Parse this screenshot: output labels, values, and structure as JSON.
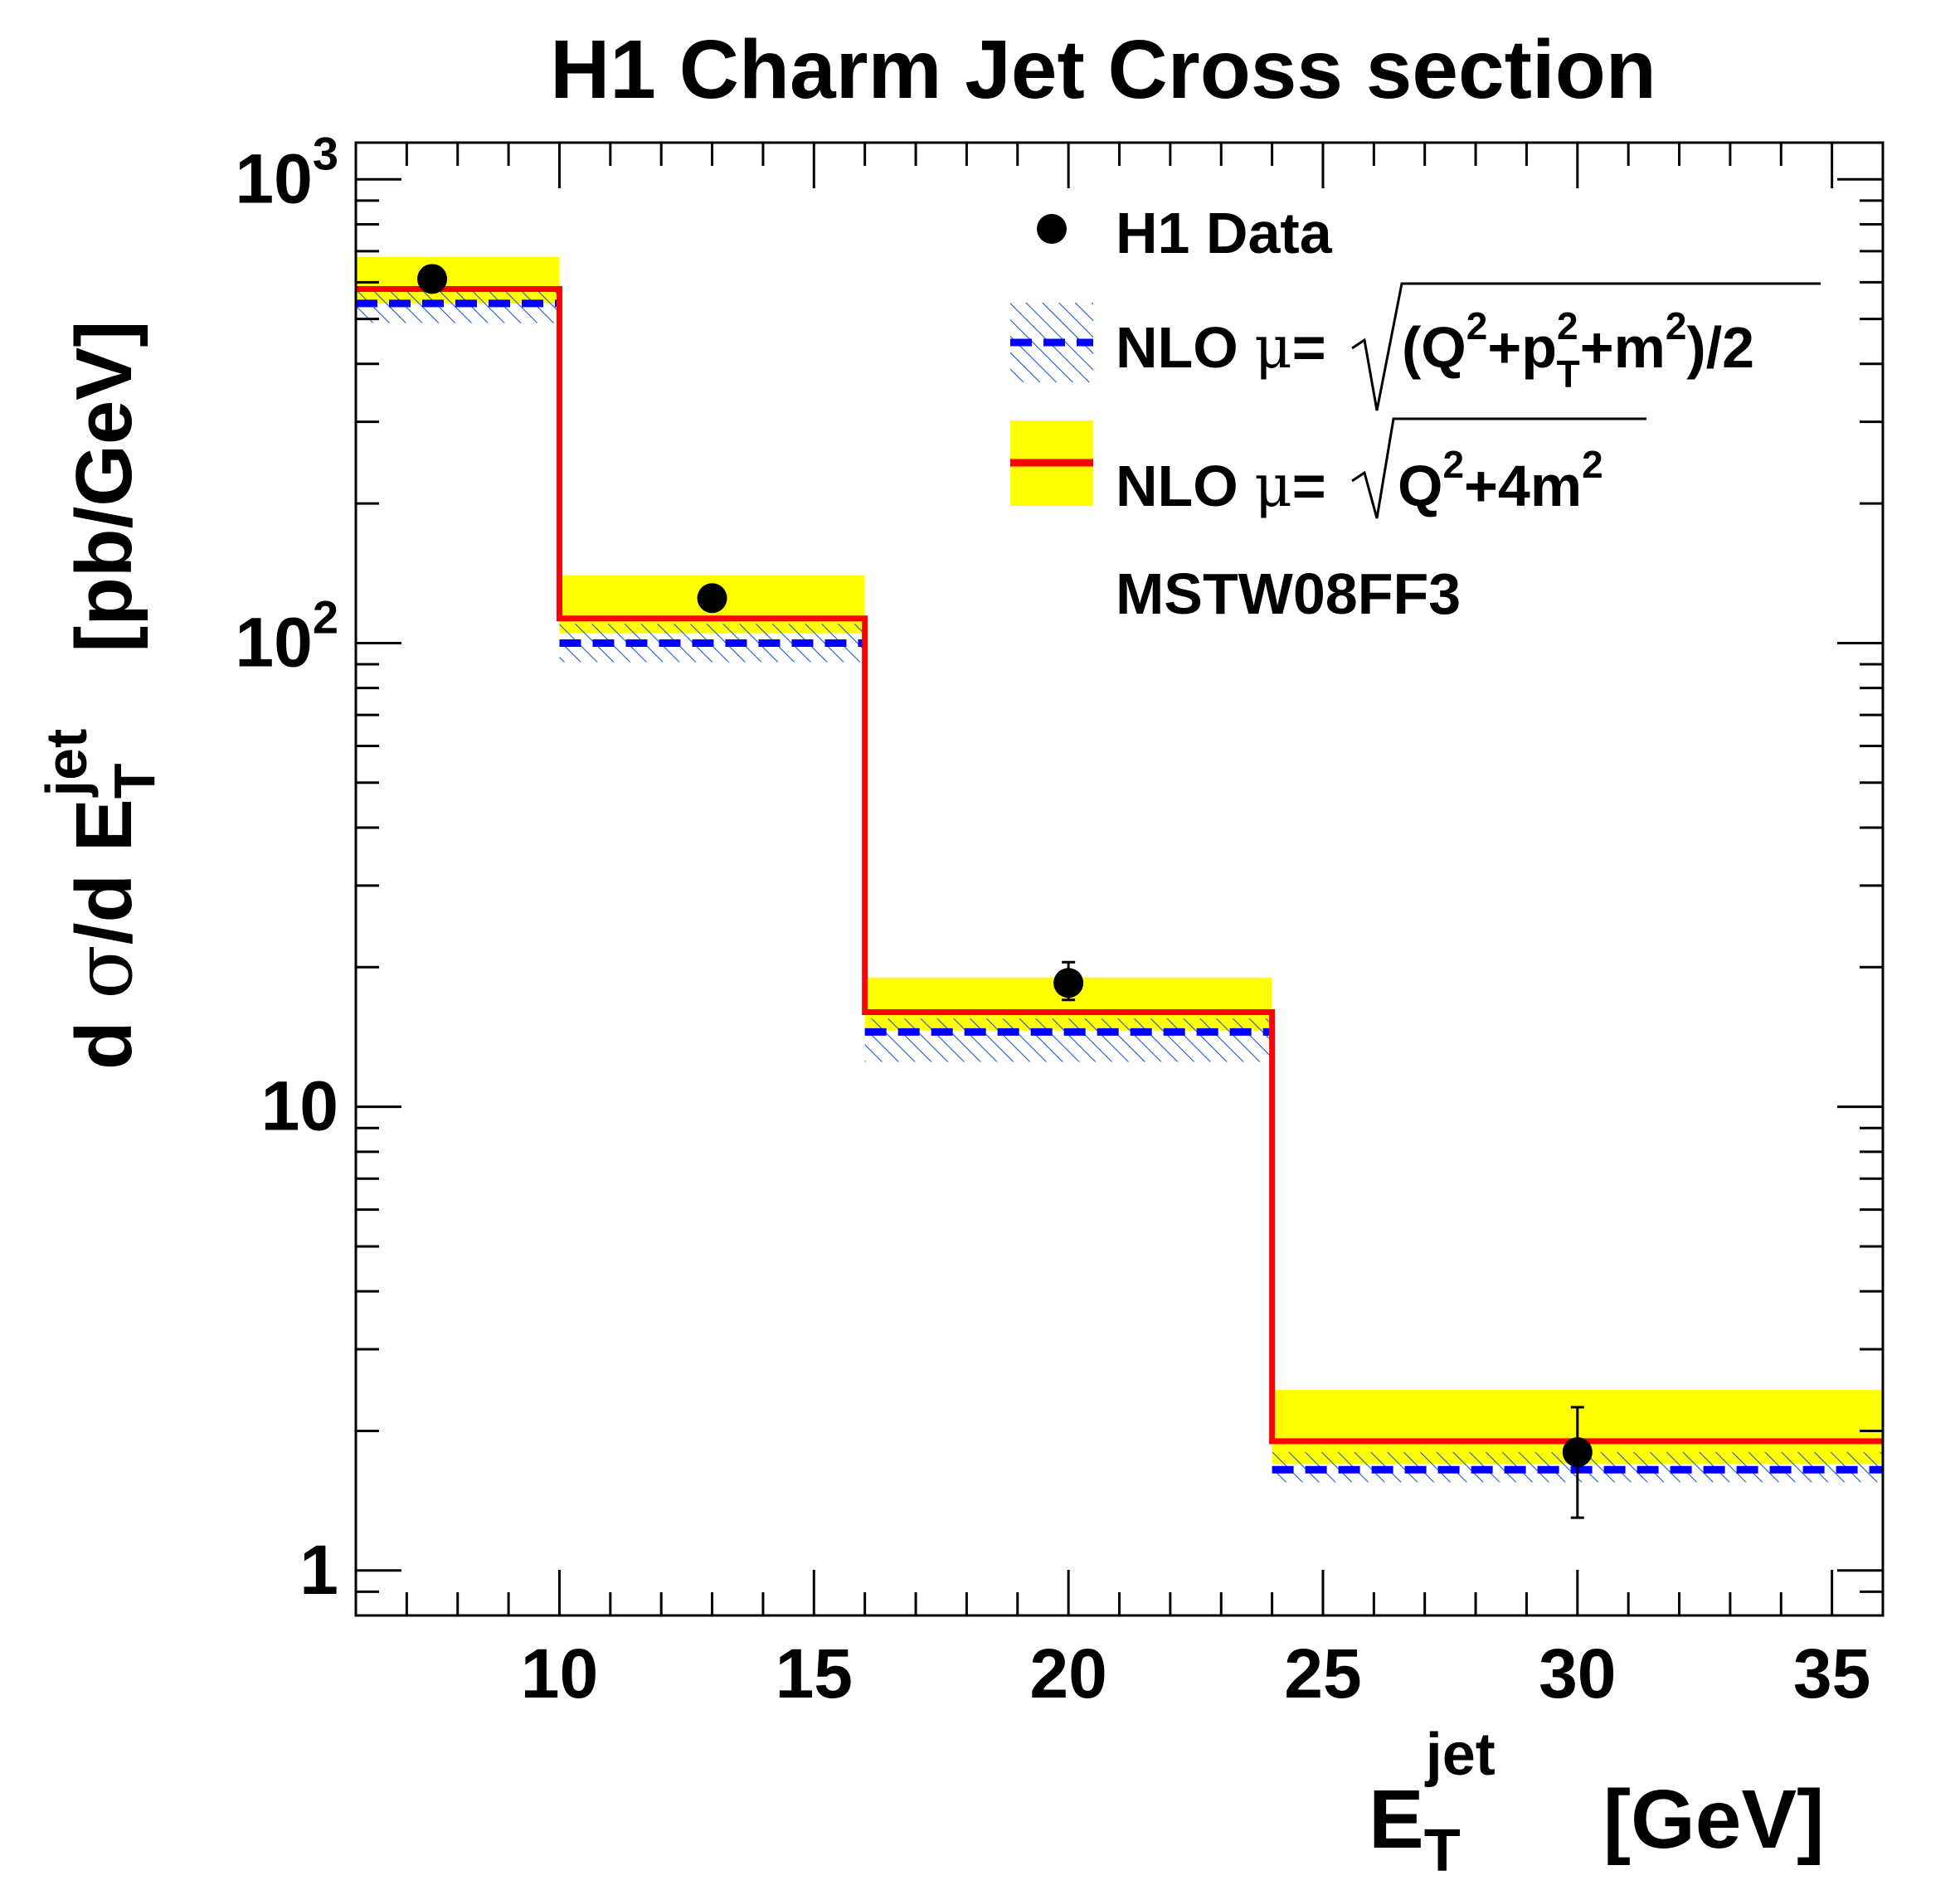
{
  "chart_data": {
    "type": "step",
    "title": "H1 Charm Jet Cross section",
    "xlabel": {
      "base": "E",
      "sub": "T",
      "sup": "jet",
      "unit": "[GeV]"
    },
    "ylabel": {
      "prefix": "d ",
      "sigma": "σ",
      "middle": "/d E",
      "sub": "T",
      "sup": "jet",
      "unit": "[pb/GeV]"
    },
    "xlim": [
      6,
      36
    ],
    "ylim": [
      0.8,
      1200
    ],
    "yscale": "log",
    "xticks": [
      "10",
      "15",
      "20",
      "25",
      "30",
      "35"
    ],
    "xtick_values": [
      10,
      15,
      20,
      25,
      30,
      35
    ],
    "yticks": [
      {
        "value": 1,
        "base": "1",
        "exp": ""
      },
      {
        "value": 10,
        "base": "10",
        "exp": ""
      },
      {
        "value": 100,
        "base": "10",
        "exp": "2"
      },
      {
        "value": 1000,
        "base": "10",
        "exp": "3"
      }
    ],
    "bin_edges": [
      6,
      10,
      16,
      24,
      36
    ],
    "data_points": {
      "name": "H1 Data",
      "x": [
        7.5,
        13,
        20,
        30
      ],
      "y": [
        610,
        125,
        18.5,
        1.8
      ],
      "err_low": [
        0,
        0,
        1.5,
        0.5
      ],
      "err_high": [
        0,
        0,
        2.0,
        0.45
      ]
    },
    "nlo_blue": {
      "central": [
        540,
        100,
        14.5,
        1.65
      ],
      "low": [
        490,
        91,
        12.5,
        1.55
      ],
      "high": [
        575,
        110,
        15.5,
        1.8
      ],
      "color": "#0000ff",
      "hatch_color": "#1e5ad0"
    },
    "nlo_red": {
      "central": [
        580,
        113,
        16,
        1.9
      ],
      "low": [
        540,
        105,
        14.6,
        1.7
      ],
      "high": [
        680,
        140,
        19,
        2.45
      ],
      "color": "#ff0000",
      "band_color": "#ffff00"
    },
    "legend": {
      "data_label": "H1 Data",
      "nlo_label": "NLO",
      "mu_symbol": "μ",
      "blue_formula": {
        "open": "(Q",
        "exp1": "2",
        "plus_p": "+p",
        "p_sup": "2",
        "p_sub": "T",
        "plus_m": "+m",
        "exp2": "2",
        "close": ")/2"
      },
      "red_formula": {
        "q": "Q",
        "exp1": "2",
        "rest": "+4m",
        "exp2": "2"
      },
      "pdf_label": "MSTW08FF3"
    }
  }
}
